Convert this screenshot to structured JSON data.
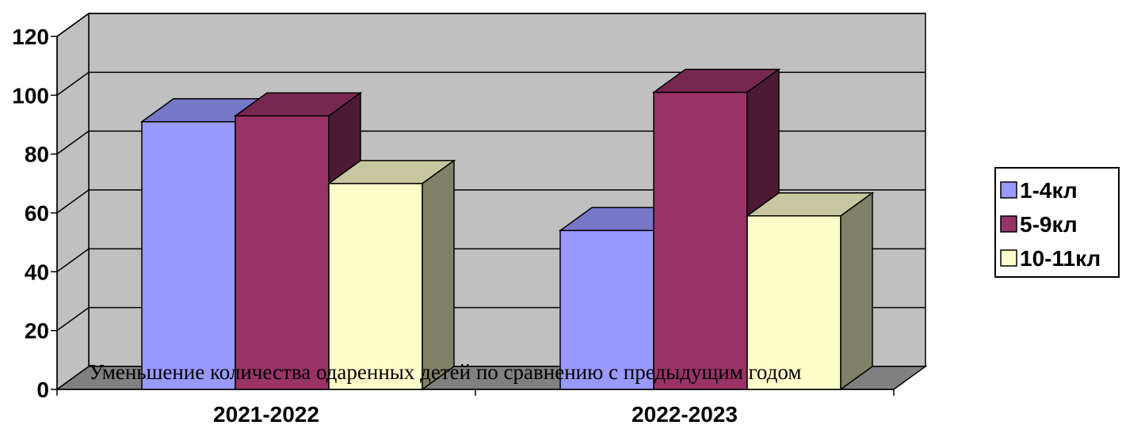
{
  "chart_data": {
    "type": "bar",
    "categories": [
      "2021-2022",
      "2022-2023"
    ],
    "series": [
      {
        "name": "1-4кл",
        "values": [
          91,
          54
        ],
        "color": "#9999ff"
      },
      {
        "name": "5-9кл",
        "values": [
          93,
          101
        ],
        "color": "#993366"
      },
      {
        "name": "10-11кл",
        "values": [
          70,
          59
        ],
        "color": "#ffffcc"
      }
    ],
    "yticks": [
      "0",
      "20",
      "40",
      "60",
      "80",
      "100",
      "120"
    ],
    "ylim": [
      0,
      120
    ],
    "annotation": "Уменьшение количества одаренных детей по сравнению с предыдущим годом",
    "legend_position": "right",
    "grid": true,
    "wall_color": "#c0c0c0",
    "floor_color": "#808080"
  }
}
